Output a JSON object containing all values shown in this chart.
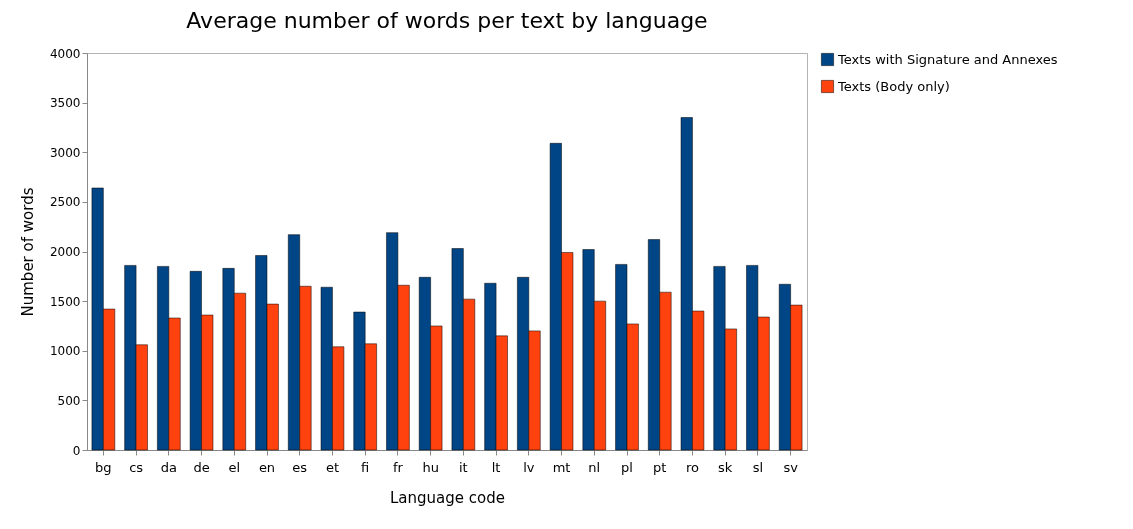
{
  "chart_data": {
    "type": "bar",
    "title": "Average number of words per text by language",
    "xlabel": "Language code",
    "ylabel": "Number of words",
    "categories": [
      "bg",
      "cs",
      "da",
      "de",
      "el",
      "en",
      "es",
      "et",
      "fi",
      "fr",
      "hu",
      "it",
      "lt",
      "lv",
      "mt",
      "nl",
      "pl",
      "pt",
      "ro",
      "sk",
      "sl",
      "sv"
    ],
    "series": [
      {
        "name": "Texts with Signature and Annexes",
        "color": "#004586",
        "values": [
          2640,
          1860,
          1850,
          1800,
          1830,
          1960,
          2170,
          1640,
          1390,
          2190,
          1740,
          2030,
          1680,
          1740,
          3090,
          2020,
          1870,
          2120,
          3350,
          1850,
          1860,
          1670
        ]
      },
      {
        "name": "Texts (Body only)",
        "color": "#ff420e",
        "values": [
          1420,
          1060,
          1330,
          1360,
          1580,
          1470,
          1650,
          1040,
          1070,
          1660,
          1250,
          1520,
          1150,
          1200,
          1990,
          1500,
          1270,
          1590,
          1400,
          1220,
          1340,
          1460
        ]
      }
    ],
    "ylim": [
      0,
      4000
    ],
    "yticks": [
      0,
      500,
      1000,
      1500,
      2000,
      2500,
      3000,
      3500,
      4000
    ],
    "grid": false,
    "legend": "right"
  }
}
